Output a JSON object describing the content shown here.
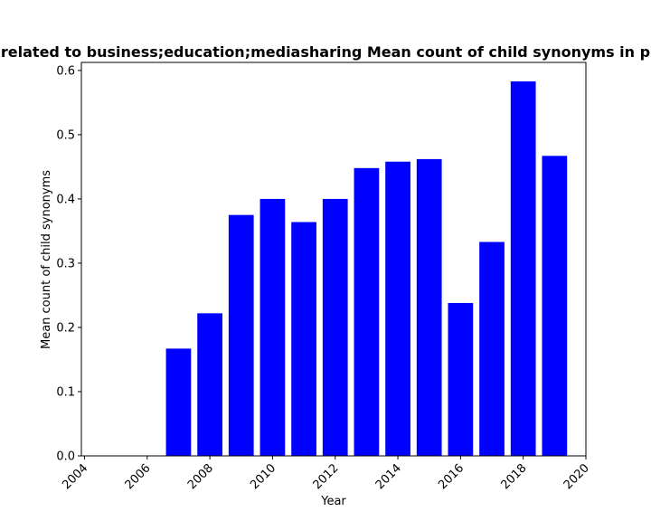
{
  "chart_data": {
    "type": "bar",
    "title": "related to business;education;mediasharing Mean count of child synonyms in p",
    "xlabel": "Year",
    "ylabel": "Mean count of child synonyms",
    "x": [
      2007,
      2008,
      2009,
      2010,
      2011,
      2012,
      2013,
      2014,
      2015,
      2016,
      2017,
      2018,
      2019
    ],
    "values": [
      0.167,
      0.222,
      0.375,
      0.4,
      0.364,
      0.4,
      0.448,
      0.458,
      0.462,
      0.238,
      0.333,
      0.583,
      0.467
    ],
    "xlim": [
      2003.9,
      2020.0
    ],
    "ylim": [
      0,
      0.6125
    ],
    "xticks": [
      2004,
      2006,
      2008,
      2010,
      2012,
      2014,
      2016,
      2018,
      2020
    ],
    "xtick_labels": [
      "2004",
      "2006",
      "2008",
      "2010",
      "2012",
      "2014",
      "2016",
      "2018",
      "2020"
    ],
    "yticks": [
      0.0,
      0.1,
      0.2,
      0.3,
      0.4,
      0.5,
      0.6
    ],
    "ytick_labels": [
      "0.0",
      "0.1",
      "0.2",
      "0.3",
      "0.4",
      "0.5",
      "0.6"
    ],
    "bar_color": "#0000ff",
    "grid": false
  }
}
